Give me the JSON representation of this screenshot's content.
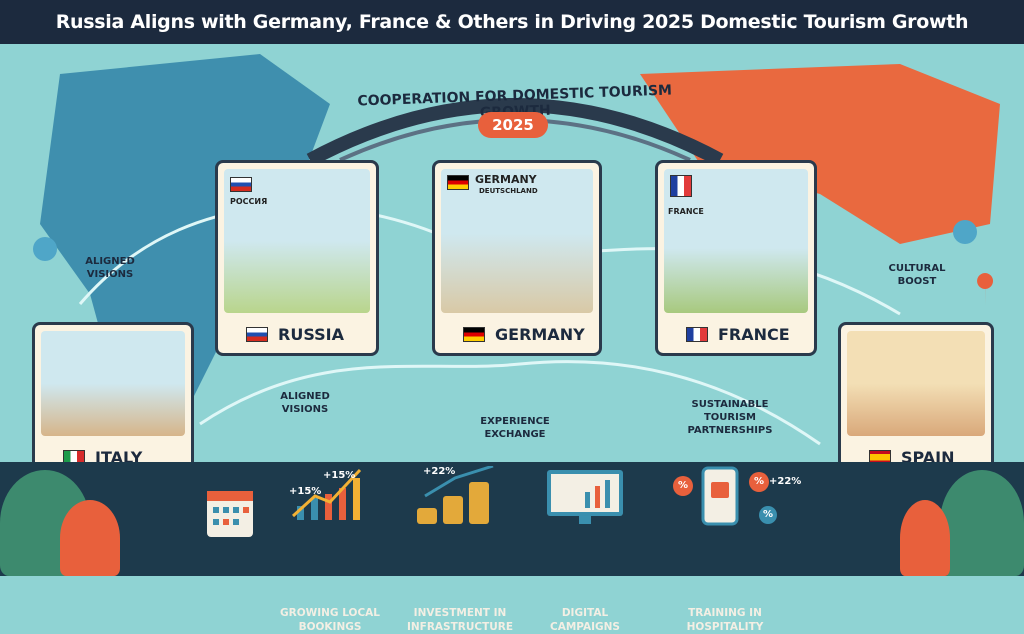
{
  "title": "Russia Aligns with Germany, France & Others in Driving 2025 Domestic Tourism Growth",
  "banner": {
    "text": "COOPERATION FOR DOMESTIC TOURISM GROWTH",
    "year": "2025"
  },
  "cards": {
    "russia": {
      "label": "RUSSIA",
      "native": "РОССИЯ"
    },
    "germany": {
      "label": "GERMANY",
      "top": "GERMANY",
      "native": "DEUTSCHLAND"
    },
    "france": {
      "label": "FRANCE",
      "native": "FRANCE"
    },
    "italy": {
      "label": "ITALY"
    },
    "spain": {
      "label": "SPAIN"
    }
  },
  "map_labels": {
    "aligned_1": "ALIGNED VISIONS",
    "aligned_2": "ALIGNED VISIONS",
    "experience": "EXPERIENCE EXCHANGE",
    "sustainable": "SUSTAINABLE TOURISM PARTNERSHIPS",
    "cultural": "CULTURAL BOOST"
  },
  "stats": [
    {
      "caption": "GROWING LOCAL BOOKINGS",
      "values": [
        "+15%",
        "+15%"
      ]
    },
    {
      "caption": "INVESTMENT IN INFRASTRUCTURE",
      "values": [
        "+22%"
      ]
    },
    {
      "caption": "DIGITAL CAMPAIGNS"
    },
    {
      "caption": "TRAINING IN HOSPITALITY",
      "values": [
        "%",
        "%",
        "+22%",
        "%"
      ]
    }
  ],
  "colors": {
    "navy": "#1c2a3e",
    "teal": "#8fd3d3",
    "orange": "#e8603c",
    "card": "#fbf3e2"
  }
}
